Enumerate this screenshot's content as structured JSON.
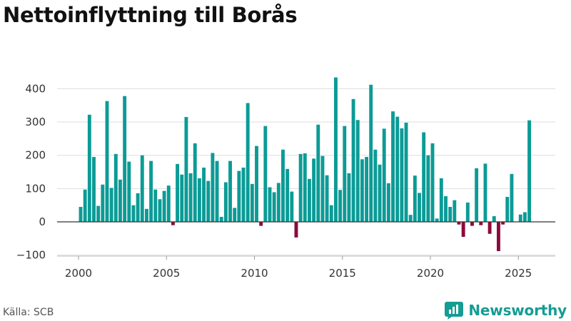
{
  "title": "Nettoinflyttning till Borås",
  "source": "Källa: SCB",
  "brand": {
    "name": "Newsworthy",
    "icon": "bar-chart-logo-icon"
  },
  "colors": {
    "positive": "#0c9b96",
    "negative": "#8d0a3c",
    "grid": "#dddddd",
    "zero": "#333333",
    "brand": "#159c94"
  },
  "chart_data": {
    "type": "bar",
    "title": "Nettoinflyttning till Borås",
    "xlabel": "",
    "ylabel": "",
    "ylim": [
      -100,
      450
    ],
    "xlim": [
      1999.1,
      2026.1
    ],
    "yticks": [
      -100,
      0,
      100,
      200,
      300,
      400
    ],
    "ytick_labels": [
      "−100",
      "0",
      "100",
      "200",
      "300",
      "400"
    ],
    "xticks": [
      2000,
      2005,
      2010,
      2015,
      2020,
      2025
    ],
    "xtick_labels": [
      "2000",
      "2005",
      "2010",
      "2015",
      "2020",
      "2025"
    ],
    "frequency": "quarterly",
    "start_year": 2000,
    "start_quarter": 1,
    "values": [
      45,
      97,
      322,
      195,
      48,
      112,
      363,
      102,
      204,
      127,
      378,
      181,
      50,
      86,
      200,
      39,
      183,
      97,
      68,
      93,
      109,
      -10,
      174,
      142,
      315,
      146,
      236,
      131,
      163,
      123,
      207,
      183,
      15,
      119,
      183,
      42,
      153,
      163,
      357,
      114,
      228,
      -12,
      288,
      104,
      89,
      117,
      217,
      159,
      91,
      -47,
      204,
      206,
      129,
      190,
      292,
      198,
      140,
      50,
      434,
      96,
      288,
      146,
      369,
      306,
      188,
      195,
      412,
      217,
      172,
      280,
      116,
      332,
      316,
      281,
      298,
      21,
      139,
      87,
      269,
      200,
      236,
      10,
      131,
      77,
      45,
      65,
      -8,
      -45,
      58,
      -12,
      161,
      -10,
      175,
      -36,
      17,
      -88,
      -8,
      75,
      144,
      0,
      22,
      29,
      305
    ]
  }
}
